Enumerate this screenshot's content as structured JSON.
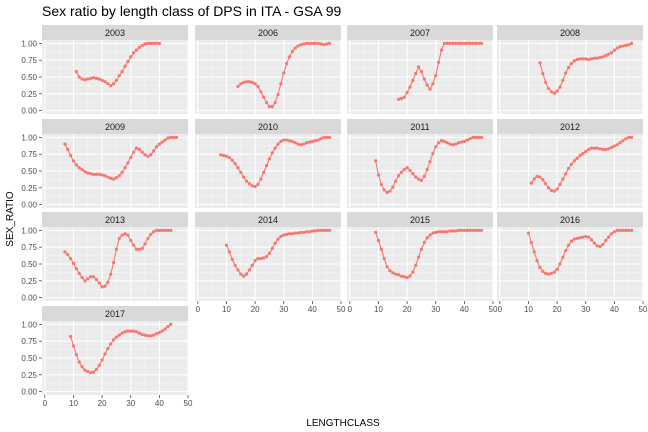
{
  "chart_data": {
    "type": "line",
    "title": "Sex ratio by length class of DPS in ITA - GSA 99",
    "xlabel": "LENGTHCLASS",
    "ylabel": "SEX_RATIO",
    "xlim": [
      -1,
      50
    ],
    "ylim": [
      -0.05,
      1.05
    ],
    "x_ticks": [
      "0",
      "10",
      "20",
      "30",
      "40",
      "50"
    ],
    "y_ticks": [
      "0.00",
      "0.25",
      "0.50",
      "0.75",
      "1.00"
    ],
    "layout": "facet grid, 4 columns",
    "grid": true,
    "color": "#f8766d",
    "panel_background": "#ebebeb",
    "strip_background": "#d9d9d9",
    "facets": [
      {
        "label": "2003",
        "x": [
          11,
          12,
          13,
          14,
          15,
          16,
          17,
          18,
          19,
          20,
          21,
          22,
          23,
          24,
          25,
          26,
          27,
          28,
          29,
          30,
          31,
          32,
          33,
          34,
          35,
          36,
          37,
          38,
          39,
          40
        ],
        "y": [
          0.58,
          0.5,
          0.47,
          0.46,
          0.47,
          0.48,
          0.49,
          0.48,
          0.47,
          0.45,
          0.43,
          0.4,
          0.37,
          0.4,
          0.45,
          0.52,
          0.58,
          0.66,
          0.73,
          0.8,
          0.86,
          0.9,
          0.94,
          0.97,
          0.99,
          1.0,
          1.0,
          1.0,
          1.0,
          1.0
        ]
      },
      {
        "label": "2006",
        "x": [
          14,
          15,
          16,
          17,
          18,
          19,
          20,
          21,
          22,
          23,
          24,
          25,
          26,
          27,
          28,
          29,
          30,
          31,
          32,
          33,
          34,
          35,
          36,
          37,
          38,
          39,
          40,
          41,
          42,
          43,
          44,
          45,
          46
        ],
        "y": [
          0.36,
          0.4,
          0.42,
          0.43,
          0.43,
          0.42,
          0.4,
          0.36,
          0.28,
          0.2,
          0.12,
          0.06,
          0.06,
          0.12,
          0.24,
          0.4,
          0.56,
          0.7,
          0.8,
          0.88,
          0.93,
          0.96,
          0.98,
          0.99,
          1.0,
          1.0,
          1.0,
          1.0,
          1.0,
          0.99,
          0.98,
          0.99,
          1.0
        ]
      },
      {
        "label": "2007",
        "x": [
          17,
          18,
          19,
          20,
          21,
          22,
          23,
          24,
          25,
          26,
          27,
          28,
          29,
          30,
          31,
          32,
          33,
          34,
          35,
          36,
          37,
          38,
          39,
          40,
          41,
          42,
          43,
          44,
          45,
          46
        ],
        "y": [
          0.17,
          0.18,
          0.2,
          0.27,
          0.35,
          0.45,
          0.55,
          0.65,
          0.58,
          0.47,
          0.38,
          0.32,
          0.4,
          0.52,
          0.72,
          0.9,
          1.0,
          1.0,
          1.0,
          1.0,
          1.0,
          1.0,
          1.0,
          1.0,
          1.0,
          1.0,
          1.0,
          1.0,
          1.0,
          1.0
        ]
      },
      {
        "label": "2008",
        "x": [
          14,
          15,
          16,
          17,
          18,
          19,
          20,
          21,
          22,
          23,
          24,
          25,
          26,
          27,
          28,
          29,
          30,
          31,
          32,
          33,
          34,
          35,
          36,
          37,
          38,
          39,
          40,
          41,
          42,
          43,
          44,
          45,
          46
        ],
        "y": [
          0.71,
          0.55,
          0.42,
          0.33,
          0.28,
          0.26,
          0.29,
          0.35,
          0.45,
          0.56,
          0.64,
          0.7,
          0.74,
          0.76,
          0.77,
          0.77,
          0.77,
          0.76,
          0.77,
          0.78,
          0.78,
          0.79,
          0.8,
          0.82,
          0.84,
          0.86,
          0.9,
          0.93,
          0.95,
          0.96,
          0.97,
          0.98,
          1.0
        ]
      },
      {
        "label": "2009",
        "x": [
          7,
          8,
          9,
          10,
          11,
          12,
          13,
          14,
          15,
          16,
          17,
          18,
          19,
          20,
          21,
          22,
          23,
          24,
          25,
          26,
          27,
          28,
          29,
          30,
          31,
          32,
          33,
          34,
          35,
          36,
          37,
          38,
          39,
          40,
          41,
          42,
          43,
          44,
          45,
          46
        ],
        "y": [
          0.9,
          0.82,
          0.73,
          0.65,
          0.59,
          0.55,
          0.52,
          0.49,
          0.47,
          0.46,
          0.45,
          0.45,
          0.45,
          0.44,
          0.43,
          0.41,
          0.39,
          0.38,
          0.4,
          0.43,
          0.48,
          0.55,
          0.62,
          0.7,
          0.78,
          0.84,
          0.82,
          0.78,
          0.74,
          0.72,
          0.74,
          0.8,
          0.86,
          0.9,
          0.93,
          0.96,
          0.99,
          1.0,
          1.0,
          1.0
        ]
      },
      {
        "label": "2010",
        "x": [
          8,
          9,
          10,
          11,
          12,
          13,
          14,
          15,
          16,
          17,
          18,
          19,
          20,
          21,
          22,
          23,
          24,
          25,
          26,
          27,
          28,
          29,
          30,
          31,
          32,
          33,
          34,
          35,
          36,
          37,
          38,
          39,
          40,
          41,
          42,
          43,
          44,
          45,
          46
        ],
        "y": [
          0.74,
          0.73,
          0.72,
          0.7,
          0.66,
          0.61,
          0.55,
          0.48,
          0.41,
          0.35,
          0.31,
          0.28,
          0.27,
          0.3,
          0.38,
          0.48,
          0.58,
          0.68,
          0.77,
          0.84,
          0.9,
          0.94,
          0.96,
          0.96,
          0.95,
          0.94,
          0.92,
          0.9,
          0.89,
          0.9,
          0.92,
          0.93,
          0.94,
          0.95,
          0.96,
          0.98,
          1.0,
          1.0,
          1.0
        ]
      },
      {
        "label": "2011",
        "x": [
          9,
          10,
          11,
          12,
          13,
          14,
          15,
          16,
          17,
          18,
          19,
          20,
          21,
          22,
          23,
          24,
          25,
          26,
          27,
          28,
          29,
          30,
          31,
          32,
          33,
          34,
          35,
          36,
          37,
          38,
          39,
          40,
          41,
          42,
          43,
          44,
          45,
          46
        ],
        "y": [
          0.65,
          0.44,
          0.3,
          0.22,
          0.18,
          0.2,
          0.26,
          0.35,
          0.43,
          0.48,
          0.52,
          0.55,
          0.51,
          0.46,
          0.41,
          0.38,
          0.36,
          0.42,
          0.52,
          0.64,
          0.76,
          0.86,
          0.92,
          0.95,
          0.94,
          0.92,
          0.9,
          0.89,
          0.9,
          0.92,
          0.93,
          0.94,
          0.96,
          0.98,
          1.0,
          1.0,
          1.0,
          1.0
        ]
      },
      {
        "label": "2012",
        "x": [
          11,
          12,
          13,
          14,
          15,
          16,
          17,
          18,
          19,
          20,
          21,
          22,
          23,
          24,
          25,
          26,
          27,
          28,
          29,
          30,
          31,
          32,
          33,
          34,
          35,
          36,
          37,
          38,
          39,
          40,
          41,
          42,
          43,
          44,
          45,
          46
        ],
        "y": [
          0.32,
          0.38,
          0.42,
          0.41,
          0.37,
          0.31,
          0.25,
          0.21,
          0.2,
          0.23,
          0.3,
          0.38,
          0.46,
          0.54,
          0.6,
          0.65,
          0.69,
          0.73,
          0.76,
          0.79,
          0.82,
          0.84,
          0.84,
          0.84,
          0.83,
          0.82,
          0.82,
          0.83,
          0.85,
          0.87,
          0.89,
          0.92,
          0.95,
          0.98,
          1.0,
          1.0
        ]
      },
      {
        "label": "2013",
        "x": [
          7,
          8,
          9,
          10,
          11,
          12,
          13,
          14,
          15,
          16,
          17,
          18,
          19,
          20,
          21,
          22,
          23,
          24,
          25,
          26,
          27,
          28,
          29,
          30,
          31,
          32,
          33,
          34,
          35,
          36,
          37,
          38,
          39,
          40,
          41,
          42,
          43,
          44
        ],
        "y": [
          0.68,
          0.64,
          0.58,
          0.51,
          0.43,
          0.36,
          0.3,
          0.25,
          0.28,
          0.31,
          0.31,
          0.27,
          0.22,
          0.16,
          0.17,
          0.23,
          0.35,
          0.52,
          0.72,
          0.88,
          0.93,
          0.95,
          0.93,
          0.85,
          0.78,
          0.72,
          0.72,
          0.73,
          0.8,
          0.88,
          0.94,
          0.98,
          1.0,
          1.0,
          1.0,
          1.0,
          1.0,
          1.0
        ]
      },
      {
        "label": "2014",
        "x": [
          10,
          11,
          12,
          13,
          14,
          15,
          16,
          17,
          18,
          19,
          20,
          21,
          22,
          23,
          24,
          25,
          26,
          27,
          28,
          29,
          30,
          31,
          32,
          33,
          34,
          35,
          36,
          37,
          38,
          39,
          40,
          41,
          42,
          43,
          44,
          45,
          46
        ],
        "y": [
          0.78,
          0.68,
          0.57,
          0.48,
          0.41,
          0.35,
          0.32,
          0.35,
          0.41,
          0.48,
          0.55,
          0.58,
          0.58,
          0.59,
          0.61,
          0.66,
          0.73,
          0.81,
          0.87,
          0.91,
          0.93,
          0.94,
          0.95,
          0.95,
          0.96,
          0.96,
          0.97,
          0.97,
          0.98,
          0.98,
          0.99,
          0.99,
          1.0,
          1.0,
          1.0,
          1.0,
          1.0
        ]
      },
      {
        "label": "2015",
        "x": [
          9,
          10,
          11,
          12,
          13,
          14,
          15,
          16,
          17,
          18,
          19,
          20,
          21,
          22,
          23,
          24,
          25,
          26,
          27,
          28,
          29,
          30,
          31,
          32,
          33,
          34,
          35,
          36,
          37,
          38,
          39,
          40,
          41,
          42,
          43,
          44,
          45,
          46
        ],
        "y": [
          0.97,
          0.85,
          0.72,
          0.58,
          0.46,
          0.4,
          0.37,
          0.35,
          0.34,
          0.32,
          0.31,
          0.3,
          0.32,
          0.38,
          0.48,
          0.6,
          0.72,
          0.82,
          0.89,
          0.93,
          0.96,
          0.97,
          0.98,
          0.98,
          0.98,
          0.98,
          0.99,
          0.99,
          0.99,
          1.0,
          1.0,
          1.0,
          1.0,
          1.0,
          1.0,
          1.0,
          1.0,
          1.0
        ]
      },
      {
        "label": "2016",
        "x": [
          10,
          11,
          12,
          13,
          14,
          15,
          16,
          17,
          18,
          19,
          20,
          21,
          22,
          23,
          24,
          25,
          26,
          27,
          28,
          29,
          30,
          31,
          32,
          33,
          34,
          35,
          36,
          37,
          38,
          39,
          40,
          41,
          42,
          43,
          44,
          45,
          46
        ],
        "y": [
          0.96,
          0.82,
          0.68,
          0.55,
          0.45,
          0.39,
          0.36,
          0.35,
          0.36,
          0.38,
          0.42,
          0.5,
          0.6,
          0.7,
          0.78,
          0.84,
          0.87,
          0.88,
          0.89,
          0.9,
          0.91,
          0.9,
          0.86,
          0.81,
          0.77,
          0.76,
          0.79,
          0.85,
          0.9,
          0.95,
          0.98,
          1.0,
          1.0,
          1.0,
          1.0,
          1.0,
          1.0
        ]
      },
      {
        "label": "2017",
        "x": [
          9,
          10,
          11,
          12,
          13,
          14,
          15,
          16,
          17,
          18,
          19,
          20,
          21,
          22,
          23,
          24,
          25,
          26,
          27,
          28,
          29,
          30,
          31,
          32,
          33,
          34,
          35,
          36,
          37,
          38,
          39,
          40,
          41,
          42,
          43,
          44
        ],
        "y": [
          0.82,
          0.68,
          0.55,
          0.44,
          0.37,
          0.32,
          0.3,
          0.28,
          0.29,
          0.33,
          0.39,
          0.47,
          0.56,
          0.64,
          0.71,
          0.77,
          0.81,
          0.84,
          0.87,
          0.89,
          0.9,
          0.9,
          0.9,
          0.89,
          0.87,
          0.85,
          0.84,
          0.83,
          0.83,
          0.84,
          0.86,
          0.88,
          0.9,
          0.93,
          0.97,
          1.0
        ]
      }
    ]
  }
}
